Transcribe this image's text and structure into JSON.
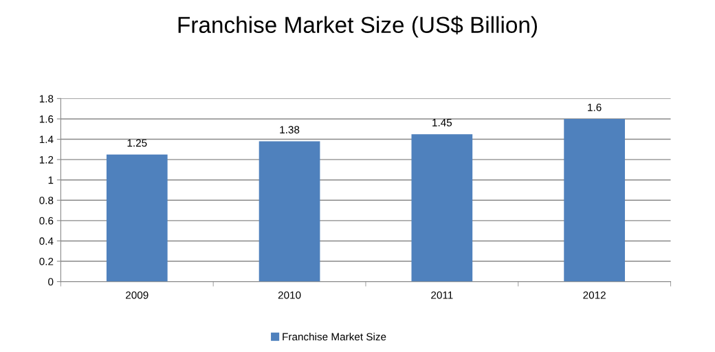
{
  "chart_data": {
    "type": "bar",
    "title": "Franchise Market Size (US$ Billion)",
    "categories": [
      "2009",
      "2010",
      "2011",
      "2012"
    ],
    "series": [
      {
        "name": "Franchise Market Size",
        "color": "#4f81bd",
        "values": [
          1.25,
          1.38,
          1.45,
          1.6
        ]
      }
    ],
    "ylim": [
      0,
      1.8
    ],
    "yticks": [
      0,
      0.2,
      0.4,
      0.6,
      0.8,
      1,
      1.2,
      1.4,
      1.6,
      1.8
    ],
    "grid": "y",
    "legend": "bottom",
    "data_labels": true
  }
}
